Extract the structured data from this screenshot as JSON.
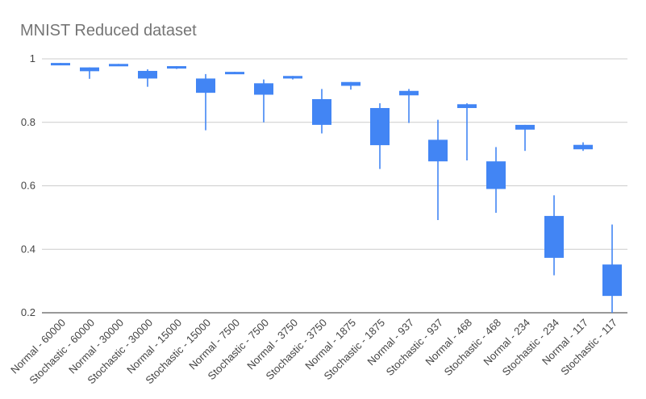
{
  "chart_data": {
    "type": "candlestick",
    "title": "MNIST Reduced dataset",
    "xlabel": "",
    "ylabel": "",
    "ylim": [
      0.2,
      1
    ],
    "yticks": [
      0.2,
      0.4,
      0.6,
      0.8,
      1
    ],
    "ytick_labels": [
      "0.2",
      "0.4",
      "0.6",
      "0.8",
      "1"
    ],
    "grid": true,
    "legend": "none",
    "color": "#4285f4",
    "categories": [
      "Normal - 60000",
      "Stochastic - 60000",
      "Normal - 30000",
      "Stochastic - 30000",
      "Normal - 15000",
      "Stochastic - 15000",
      "Normal - 7500",
      "Stochastic - 7500",
      "Normal - 3750",
      "Stochastic - 3750",
      "Normal - 1875",
      "Stochastic - 1875",
      "Normal - 937",
      "Stochastic - 937",
      "Normal - 468",
      "Stochastic - 468",
      "Normal - 234",
      "Stochastic - 234",
      "Normal - 117",
      "Stochastic - 117"
    ],
    "low": [
      0.985,
      0.937,
      0.978,
      0.912,
      0.968,
      0.775,
      0.953,
      0.8,
      0.935,
      0.765,
      0.903,
      0.653,
      0.798,
      0.492,
      0.68,
      0.515,
      0.71,
      0.318,
      0.71,
      0.2
    ],
    "q1": [
      0.981,
      0.961,
      0.977,
      0.938,
      0.97,
      0.893,
      0.953,
      0.887,
      0.938,
      0.792,
      0.915,
      0.728,
      0.885,
      0.677,
      0.845,
      0.59,
      0.777,
      0.373,
      0.715,
      0.253
    ],
    "q3": [
      0.987,
      0.973,
      0.984,
      0.962,
      0.977,
      0.938,
      0.959,
      0.923,
      0.946,
      0.873,
      0.927,
      0.845,
      0.899,
      0.745,
      0.857,
      0.677,
      0.792,
      0.505,
      0.729,
      0.352
    ],
    "high": [
      0.987,
      0.973,
      0.984,
      0.967,
      0.977,
      0.952,
      0.959,
      0.935,
      0.946,
      0.905,
      0.927,
      0.86,
      0.905,
      0.808,
      0.86,
      0.722,
      0.792,
      0.57,
      0.737,
      0.478
    ]
  }
}
